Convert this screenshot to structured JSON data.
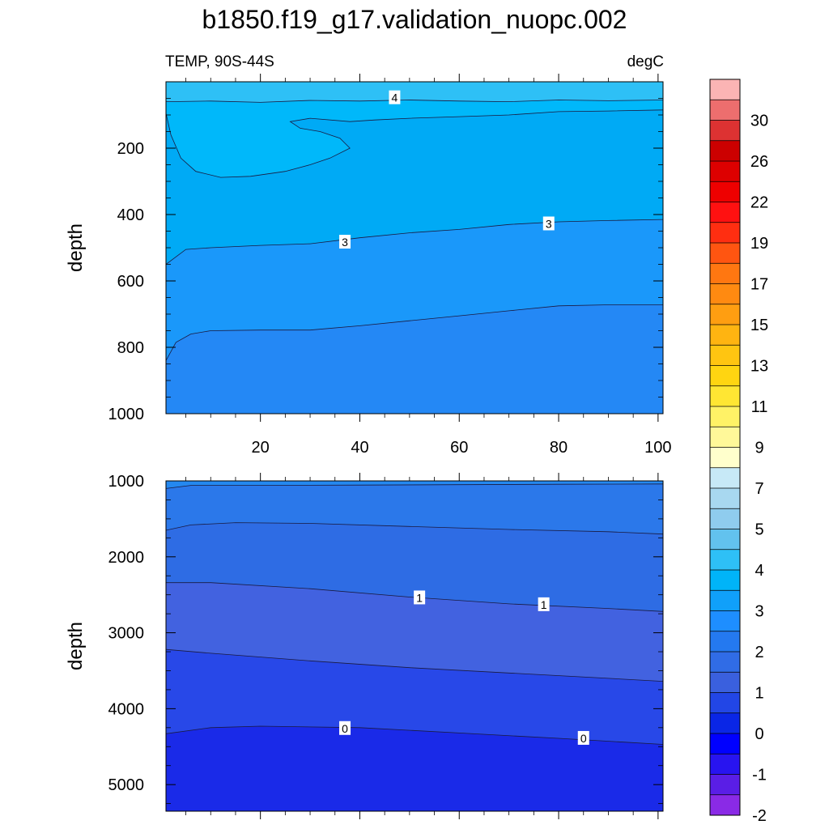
{
  "chart_data": {
    "type": "contour",
    "title": "b1850.f19_g17.validation_nuopc.002",
    "panel_left_label": "TEMP, 90S-44S",
    "panel_right_label": "degC",
    "xticks": [
      20,
      40,
      60,
      80,
      100
    ],
    "top_panel": {
      "ylabel": "depth",
      "xlim": [
        1,
        101
      ],
      "ylim": [
        1000,
        0
      ],
      "yticks": [
        200,
        400,
        600,
        800,
        1000
      ],
      "contour_levels_shown": [
        4,
        3.5,
        3,
        2.5
      ],
      "contour_labels": [
        {
          "text": "4",
          "x": 47,
          "y": 48
        },
        {
          "text": "3",
          "x": 37,
          "y": 483
        },
        {
          "text": "3",
          "x": 78,
          "y": 428
        }
      ],
      "contours": [
        {
          "level": 4,
          "points": [
            [
              1,
              60
            ],
            [
              10,
              58
            ],
            [
              20,
              62
            ],
            [
              30,
              56
            ],
            [
              40,
              58
            ],
            [
              50,
              55
            ],
            [
              60,
              58
            ],
            [
              70,
              60
            ],
            [
              80,
              55
            ],
            [
              90,
              57
            ],
            [
              101,
              55
            ]
          ]
        },
        {
          "level": 3.5,
          "points": [
            [
              1,
              95
            ],
            [
              2,
              160
            ],
            [
              4,
              230
            ],
            [
              7,
              270
            ],
            [
              12,
              288
            ],
            [
              18,
              285
            ],
            [
              25,
              270
            ],
            [
              30,
              250
            ],
            [
              34,
              230
            ],
            [
              38,
              200
            ],
            [
              36,
              170
            ],
            [
              32,
              150
            ],
            [
              28,
              140
            ],
            [
              26,
              120
            ],
            [
              30,
              110
            ],
            [
              38,
              120
            ],
            [
              43,
              115
            ],
            [
              50,
              110
            ],
            [
              60,
              105
            ],
            [
              70,
              100
            ],
            [
              80,
              90
            ],
            [
              90,
              88
            ],
            [
              101,
              85
            ]
          ]
        },
        {
          "level": 3,
          "points": [
            [
              1,
              550
            ],
            [
              5,
              505
            ],
            [
              10,
              500
            ],
            [
              20,
              493
            ],
            [
              30,
              488
            ],
            [
              40,
              470
            ],
            [
              50,
              455
            ],
            [
              60,
              445
            ],
            [
              70,
              430
            ],
            [
              80,
              422
            ],
            [
              90,
              418
            ],
            [
              101,
              415
            ]
          ]
        },
        {
          "level": 2.5,
          "points": [
            [
              1,
              840
            ],
            [
              3,
              785
            ],
            [
              6,
              760
            ],
            [
              10,
              750
            ],
            [
              20,
              748
            ],
            [
              30,
              748
            ],
            [
              40,
              735
            ],
            [
              50,
              720
            ],
            [
              60,
              705
            ],
            [
              70,
              690
            ],
            [
              80,
              675
            ],
            [
              90,
              672
            ],
            [
              101,
              672
            ]
          ]
        }
      ]
    },
    "bottom_panel": {
      "ylabel": "depth",
      "xlim": [
        1,
        101
      ],
      "ylim": [
        5350,
        1000
      ],
      "yticks": [
        1000,
        2000,
        3000,
        4000,
        5000
      ],
      "contour_levels_shown": [
        1.75,
        1.5,
        1,
        0.5,
        0
      ],
      "contour_labels": [
        {
          "text": "1",
          "x": 52,
          "y": 2540
        },
        {
          "text": "1",
          "x": 77,
          "y": 2630
        },
        {
          "text": "0",
          "x": 37,
          "y": 4260
        },
        {
          "text": "0",
          "x": 85,
          "y": 4390
        }
      ],
      "contours": [
        {
          "level": 1.75,
          "points": [
            [
              1,
              1100
            ],
            [
              6,
              1060
            ],
            [
              20,
              1060
            ],
            [
              40,
              1055
            ],
            [
              60,
              1050
            ],
            [
              80,
              1045
            ],
            [
              101,
              1040
            ]
          ]
        },
        {
          "level": 1.5,
          "points": [
            [
              1,
              1650
            ],
            [
              6,
              1580
            ],
            [
              15,
              1550
            ],
            [
              30,
              1560
            ],
            [
              50,
              1600
            ],
            [
              70,
              1640
            ],
            [
              90,
              1670
            ],
            [
              101,
              1700
            ]
          ]
        },
        {
          "level": 1,
          "points": [
            [
              1,
              2340
            ],
            [
              10,
              2340
            ],
            [
              30,
              2420
            ],
            [
              50,
              2530
            ],
            [
              70,
              2620
            ],
            [
              90,
              2680
            ],
            [
              101,
              2720
            ]
          ]
        },
        {
          "level": 0.5,
          "points": [
            [
              1,
              3220
            ],
            [
              10,
              3270
            ],
            [
              30,
              3370
            ],
            [
              50,
              3460
            ],
            [
              70,
              3530
            ],
            [
              90,
              3600
            ],
            [
              101,
              3640
            ]
          ]
        },
        {
          "level": 0,
          "points": [
            [
              1,
              4330
            ],
            [
              10,
              4250
            ],
            [
              20,
              4230
            ],
            [
              40,
              4250
            ],
            [
              60,
              4320
            ],
            [
              80,
              4390
            ],
            [
              101,
              4470
            ]
          ]
        }
      ]
    },
    "colorbar": {
      "labels": [
        "30",
        "26",
        "22",
        "19",
        "17",
        "15",
        "13",
        "11",
        "9",
        "7",
        "5",
        "4",
        "3",
        "2",
        "1",
        "0",
        "-1",
        "-2"
      ],
      "colors_top_to_bottom": [
        "#fbb4b4",
        "#ed6e6e",
        "#dd3232",
        "#cc0000",
        "#dd0000",
        "#ee0000",
        "#ff1111",
        "#ff2e11",
        "#ff5511",
        "#ff7711",
        "#ff8a11",
        "#ff9e11",
        "#ffb411",
        "#ffc511",
        "#ffd511",
        "#ffe633",
        "#fff266",
        "#fff899",
        "#ffffcc",
        "#c7e9f7",
        "#a8d8f0",
        "#8fccee",
        "#62c2ee",
        "#2ec0f6",
        "#00b4f8",
        "#10a0fa",
        "#1e8eff",
        "#2479f0",
        "#306ce6",
        "#3a60de",
        "#2246e6",
        "#0a26e6",
        "#0000ff",
        "#2814f0",
        "#5a1ee6",
        "#8a2ae6"
      ]
    },
    "fill_colors": {
      "top_surface": "#2ec0f6",
      "top_warm": "#00b8fa",
      "top_mid": "#00aaf5",
      "top_lower": "#1a98fa",
      "top_deep": "#2488f5",
      "bot_1": "#2488f0",
      "bot_2": "#2b78ea",
      "bot_3": "#2e6ce4",
      "bot_4": "#4262e0",
      "bot_5": "#2848e8",
      "bot_6": "#1a2ae8"
    }
  }
}
